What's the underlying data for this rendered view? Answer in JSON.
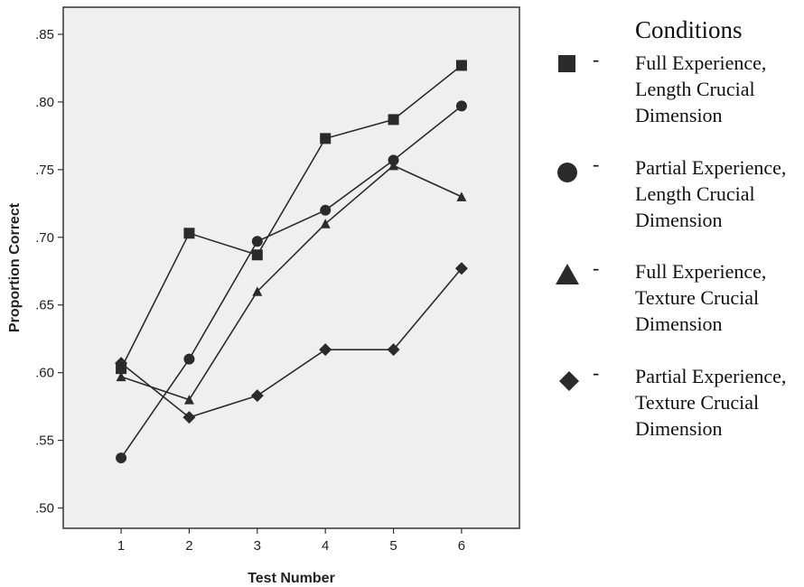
{
  "chart_data": {
    "type": "line",
    "xlabel": "Test Number",
    "ylabel": "Proportion Correct",
    "x": [
      1,
      2,
      3,
      4,
      5,
      6
    ],
    "xlim": [
      0.15,
      6.85
    ],
    "ylim": [
      0.485,
      0.87
    ],
    "yticks": [
      0.5,
      0.55,
      0.6,
      0.65,
      0.7,
      0.75,
      0.8,
      0.85
    ],
    "ytick_labels": [
      ".50",
      ".55",
      ".60",
      ".65",
      ".70",
      ".75",
      ".80",
      ".85"
    ],
    "xtick_labels": [
      "1",
      "2",
      "3",
      "4",
      "5",
      "6"
    ],
    "legend_title": "Conditions",
    "series": [
      {
        "name": "Full Experience,\nLength Crucial\nDimension",
        "marker": "square",
        "values": [
          0.603,
          0.703,
          0.687,
          0.773,
          0.787,
          0.827
        ]
      },
      {
        "name": "Partial Experience,\nLength Crucial\nDimension",
        "marker": "circle",
        "values": [
          0.537,
          0.61,
          0.697,
          0.72,
          0.757,
          0.797
        ]
      },
      {
        "name": "Full Experience,\nTexture Crucial\nDimension",
        "marker": "triangle",
        "values": [
          0.597,
          0.58,
          0.66,
          0.71,
          0.753,
          0.73
        ]
      },
      {
        "name": "Partial Experience,\nTexture Crucial\nDimension",
        "marker": "diamond",
        "values": [
          0.607,
          0.567,
          0.583,
          0.617,
          0.617,
          0.677
        ]
      }
    ],
    "colors": {
      "plot_bg": "#efefef",
      "line": "#2b2b2b",
      "marker": "#2b2b2b"
    },
    "grid": false,
    "legend_position": "right"
  },
  "legend_dash": "-"
}
